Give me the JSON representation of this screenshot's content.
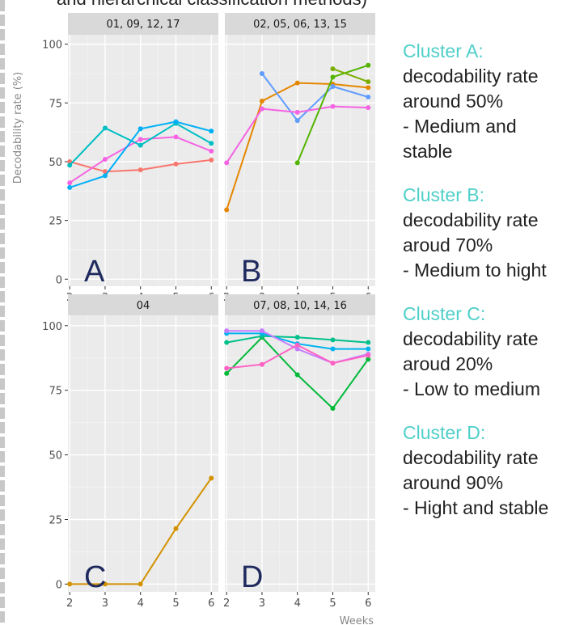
{
  "figure_title_fragment": "and hierarchical classification methods)",
  "colors": {
    "panel_bg": "#ebebeb",
    "strip_bg": "#d9d9d9",
    "grid_major": "#ffffff",
    "grid_minor": "#f5f5f5",
    "axis_text": "#4d4d4d",
    "label_text": "#888888",
    "note_head": "#4fcfc9"
  },
  "chart_data": {
    "type": "line",
    "facet_layout": "2x2",
    "ylabel": "Decodability rate (%)",
    "xlabel": "Weeks",
    "x_ticks": [
      2,
      3,
      4,
      5,
      6
    ],
    "y_ticks": [
      0,
      25,
      50,
      75,
      100
    ],
    "xlim": [
      1.95,
      6.2
    ],
    "ylim": [
      -3,
      104
    ],
    "grid": true,
    "panels": [
      {
        "strip": "01, 09, 12, 17",
        "letter": "A",
        "series": [
          {
            "color": "#f8766d",
            "x": [
              2,
              3,
              4,
              5,
              6
            ],
            "y": [
              50,
              45.8,
              46.5,
              49,
              50.7
            ]
          },
          {
            "color": "#f564e3",
            "x": [
              2,
              3,
              4,
              5,
              6
            ],
            "y": [
              41,
              51,
              59.5,
              60.5,
              54.5
            ]
          },
          {
            "color": "#00bfc4",
            "x": [
              2,
              3,
              4,
              5,
              6
            ],
            "y": [
              48.5,
              64.3,
              57,
              66.3,
              57.8
            ]
          },
          {
            "color": "#00b0f6",
            "x": [
              2,
              3,
              4,
              5,
              6
            ],
            "y": [
              39,
              44,
              64,
              67,
              63
            ]
          }
        ]
      },
      {
        "strip": "02, 05, 06, 13, 15",
        "letter": "B",
        "series": [
          {
            "color": "#e58700",
            "x": [
              2,
              3,
              4,
              5,
              6
            ],
            "y": [
              29.5,
              75.8,
              83.5,
              83,
              81.5
            ]
          },
          {
            "color": "#619cff",
            "x": [
              3,
              4,
              5,
              6
            ],
            "y": [
              87.5,
              67.5,
              82,
              77.5
            ]
          },
          {
            "color": "#f564e3",
            "x": [
              2,
              3,
              4,
              5,
              6
            ],
            "y": [
              49.5,
              72.5,
              71,
              73.5,
              73
            ]
          },
          {
            "color": "#53b400",
            "x": [
              4,
              5,
              6
            ],
            "y": [
              49.5,
              86,
              91
            ]
          },
          {
            "color": "#7cae00",
            "x": [
              5,
              6
            ],
            "y": [
              89.5,
              84
            ]
          }
        ]
      },
      {
        "strip": "04",
        "letter": "C",
        "series": [
          {
            "color": "#d39200",
            "x": [
              2,
              3,
              4,
              5,
              6
            ],
            "y": [
              0,
              0,
              0,
              21.5,
              41
            ]
          }
        ]
      },
      {
        "strip": "07, 08, 10, 14, 16",
        "letter": "D",
        "series": [
          {
            "color": "#00ba38",
            "x": [
              2,
              3,
              4,
              5,
              6
            ],
            "y": [
              81.5,
              95.5,
              81,
              68,
              87
            ]
          },
          {
            "color": "#00c08b",
            "x": [
              2,
              3,
              4,
              5,
              6
            ],
            "y": [
              93.5,
              96,
              95.5,
              94.5,
              93.5
            ]
          },
          {
            "color": "#00b4ef",
            "x": [
              2,
              3,
              4,
              5,
              6
            ],
            "y": [
              97,
              97,
              93,
              91,
              91
            ]
          },
          {
            "color": "#c77cff",
            "x": [
              2,
              3,
              4,
              5,
              6
            ],
            "y": [
              98,
              98,
              91,
              85.5,
              89
            ]
          },
          {
            "color": "#ff61c3",
            "x": [
              2,
              3,
              4,
              5,
              6
            ],
            "y": [
              83.5,
              85,
              92.5,
              85.5,
              88.5
            ]
          }
        ]
      }
    ]
  },
  "clusters": [
    {
      "head": "Cluster A:",
      "lines": [
        "decodability rate",
        "around 50%",
        "- Medium and",
        "stable"
      ]
    },
    {
      "head": "Cluster B:",
      "lines": [
        "decodability rate",
        "aroud 70%",
        "- Medium to hight"
      ]
    },
    {
      "head": "Cluster C:",
      "lines": [
        "decodability rate",
        "aroud 20%",
        "- Low to medium"
      ]
    },
    {
      "head": "Cluster D:",
      "lines": [
        "decodability rate",
        "around 90%",
        "- Hight and stable"
      ]
    }
  ]
}
